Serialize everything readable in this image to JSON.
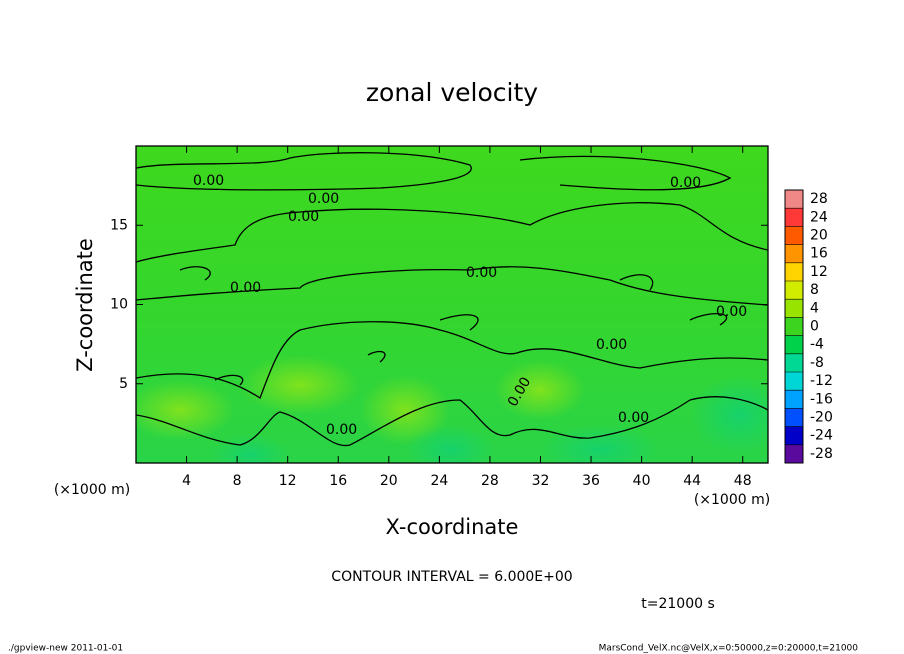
{
  "chart_data": {
    "type": "contour",
    "title": "zonal velocity",
    "x_label": "X-coordinate",
    "y_label": "Z-coordinate",
    "x_unit": "(×1000 m)",
    "y_unit": "(×1000 m)",
    "xlim": [
      0,
      50
    ],
    "xticks": [
      4,
      8,
      12,
      16,
      20,
      24,
      28,
      32,
      36,
      40,
      44,
      48
    ],
    "ylim": [
      0,
      20
    ],
    "yticks": [
      5,
      10,
      15
    ],
    "contour_label": "0.00",
    "contour_interval_text": "CONTOUR INTERVAL = 6.000E+00",
    "time_text": "t=21000 s",
    "levels": [
      28,
      24,
      20,
      16,
      12,
      8,
      4,
      0,
      -4,
      -8,
      -12,
      -16,
      -20,
      -24,
      -28
    ],
    "colors": [
      "#f08888",
      "#ff3838",
      "#ff5a00",
      "#ff9400",
      "#ffd400",
      "#d2ec00",
      "#98e400",
      "#3cd41e",
      "#00d24a",
      "#00d894",
      "#00d6d6",
      "#00a2ff",
      "#0050ff",
      "#0000c8",
      "#5a0a9c"
    ],
    "footer_left": "./gpview-new  2011-01-01",
    "footer_right": "MarsCond_VelX.nc@VelX,x=0:50000,z=0:20000,t=21000"
  }
}
